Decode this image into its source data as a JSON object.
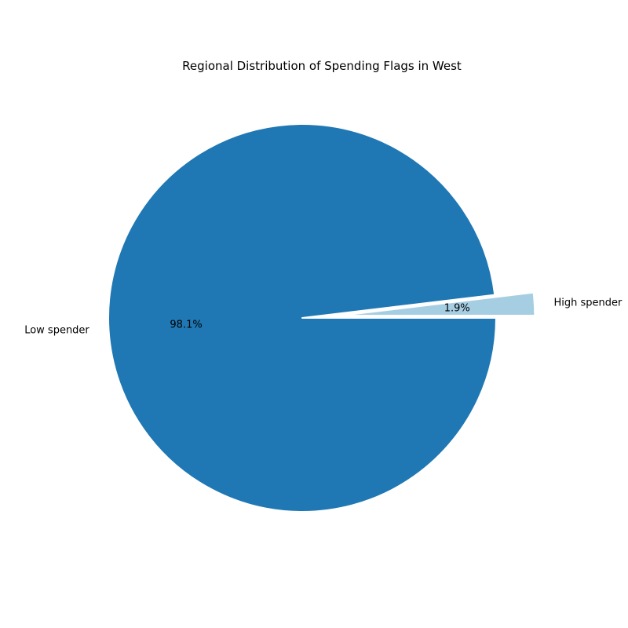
{
  "chart_data": {
    "type": "pie",
    "title": "Regional Distribution of Spending Flags in West",
    "slices": [
      {
        "label": "High spender",
        "value": 1.9,
        "pct_label": "1.9%",
        "color": "#a6cee3",
        "exploded": true
      },
      {
        "label": "Low spender",
        "value": 98.1,
        "pct_label": "98.1%",
        "color": "#1f78b4",
        "exploded": false
      }
    ],
    "start_angle_deg": 0,
    "direction": "counterclockwise",
    "slice_edge_color": "#ffffff"
  }
}
